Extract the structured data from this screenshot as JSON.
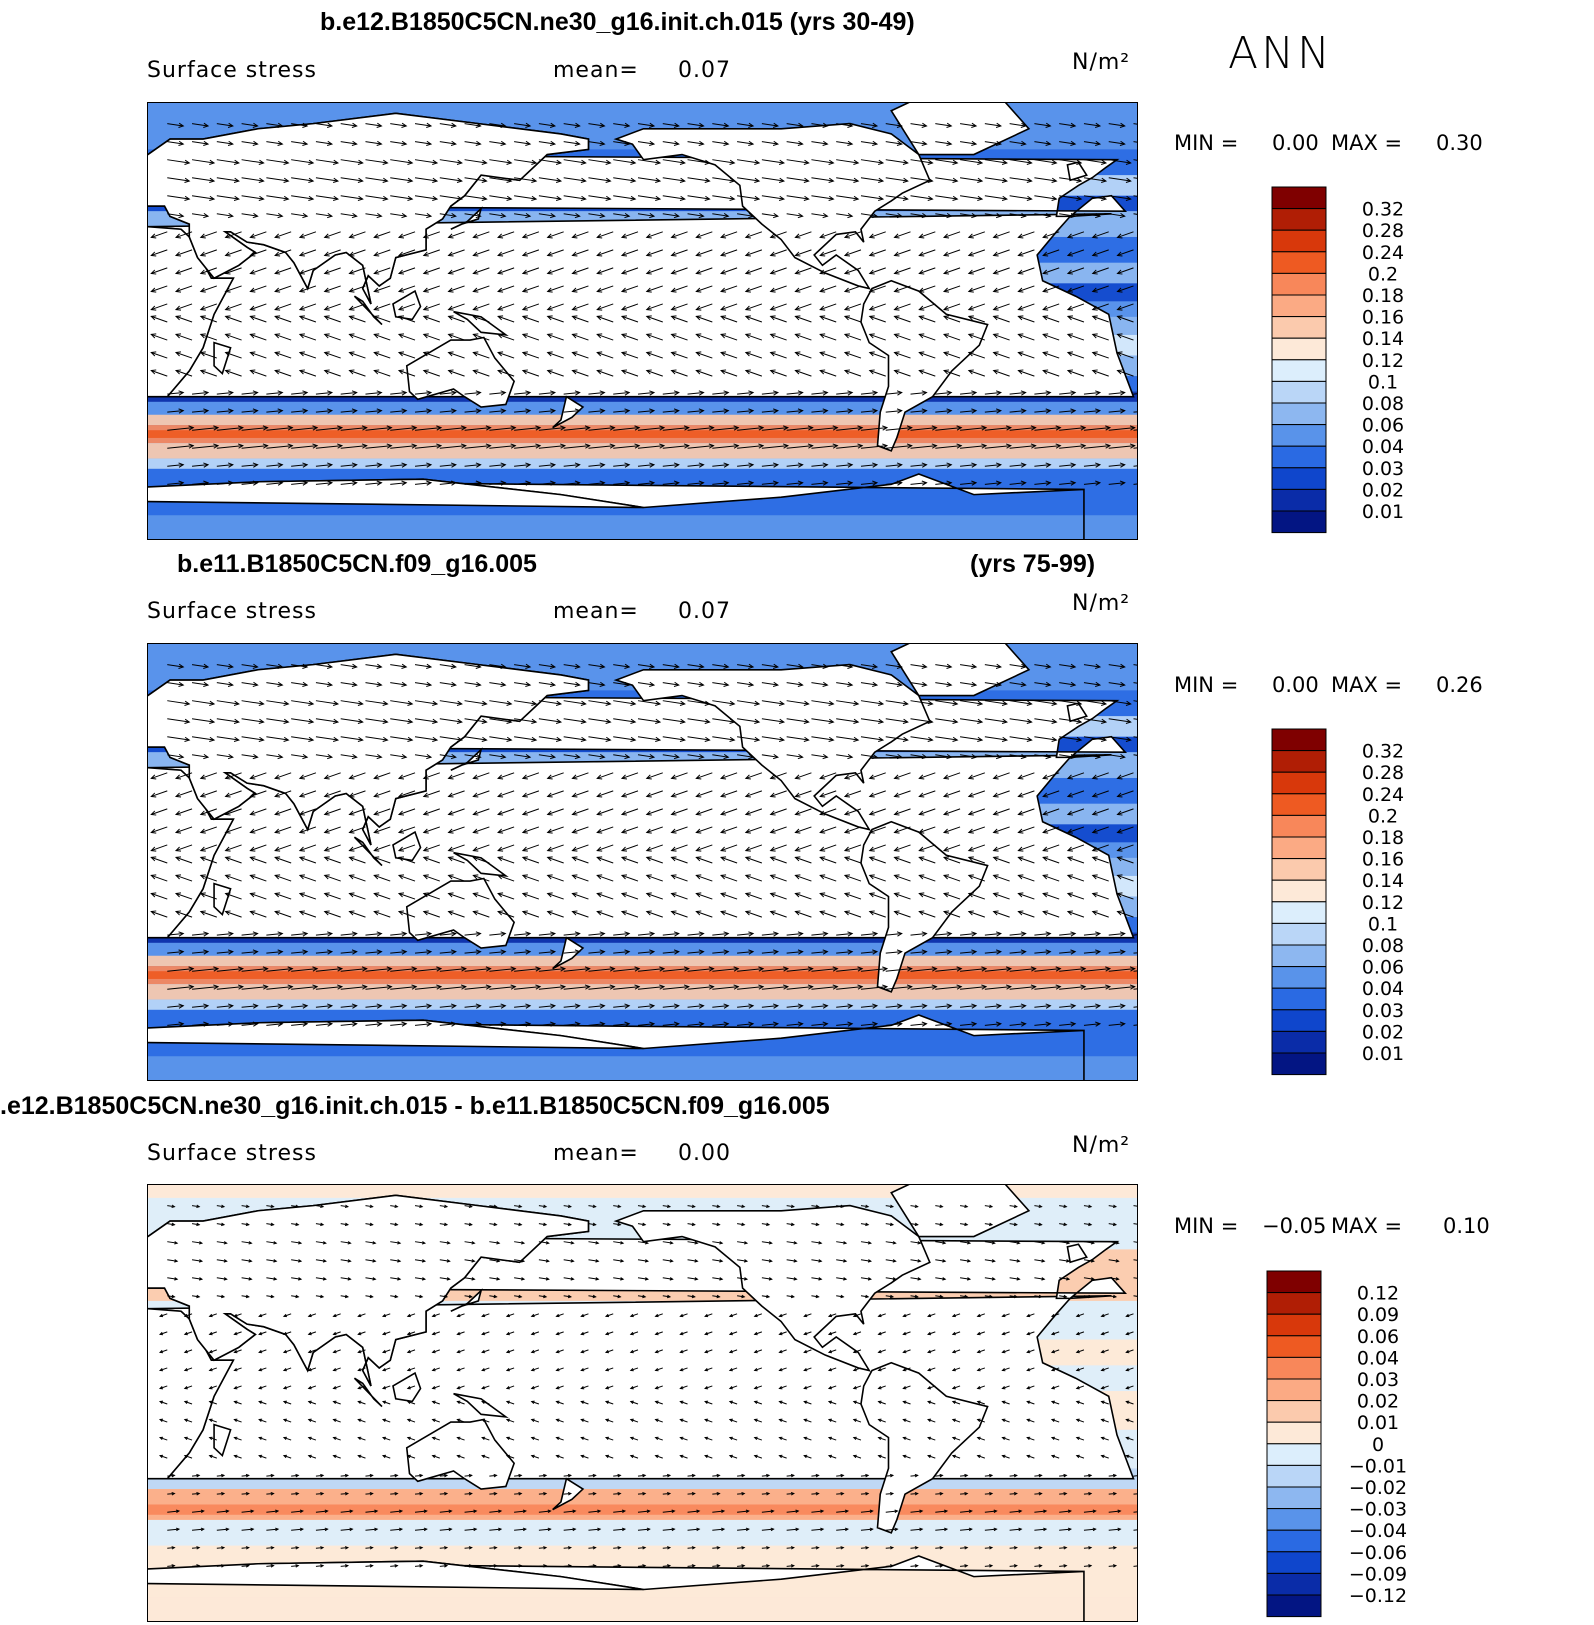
{
  "season_label": "ANN",
  "panels": [
    {
      "title_left": "b.e12.B1850C5CN.ne30_g16.init.ch.015 (yrs 30-49)",
      "title_right": "",
      "variable": "Surface stress",
      "mean_label": "mean=",
      "mean_value": "0.07",
      "units": "N/m²",
      "min_label": "MIN =",
      "min_value": "0.00",
      "max_label": "MAX =",
      "max_value": "0.30",
      "legend_ticks": [
        "0.32",
        "0.28",
        "0.24",
        "0.2",
        "0.18",
        "0.16",
        "0.14",
        "0.12",
        "0.1",
        "0.08",
        "0.06",
        "0.04",
        "0.03",
        "0.02",
        "0.01"
      ],
      "legend_colors": [
        "#7f0000",
        "#b01e05",
        "#d8380b",
        "#ee5a22",
        "#f8875a",
        "#fbaa84",
        "#fbcaad",
        "#fde9d8",
        "#dceefc",
        "#bad6f7",
        "#8db7f0",
        "#5993ea",
        "#2a6ae3",
        "#0f46cc",
        "#0a2ca8",
        "#031583"
      ]
    },
    {
      "title_left": "b.e11.B1850C5CN.f09_g16.005",
      "title_right": "(yrs 75-99)",
      "variable": "Surface stress",
      "mean_label": "mean=",
      "mean_value": "0.07",
      "units": "N/m²",
      "min_label": "MIN =",
      "min_value": "0.00",
      "max_label": "MAX =",
      "max_value": "0.26",
      "legend_ticks": [
        "0.32",
        "0.28",
        "0.24",
        "0.2",
        "0.18",
        "0.16",
        "0.14",
        "0.12",
        "0.1",
        "0.08",
        "0.06",
        "0.04",
        "0.03",
        "0.02",
        "0.01"
      ],
      "legend_colors": [
        "#7f0000",
        "#b01e05",
        "#d8380b",
        "#ee5a22",
        "#f8875a",
        "#fbaa84",
        "#fbcaad",
        "#fde9d8",
        "#dceefc",
        "#bad6f7",
        "#8db7f0",
        "#5993ea",
        "#2a6ae3",
        "#0f46cc",
        "#0a2ca8",
        "#031583"
      ]
    },
    {
      "title_left": ".e12.B1850C5CN.ne30_g16.init.ch.015 - b.e11.B1850C5CN.f09_g16.005",
      "title_right": "",
      "variable": "Surface stress",
      "mean_label": "mean=",
      "mean_value": "0.00",
      "units": "N/m²",
      "min_label": "MIN =",
      "min_value": "−0.05",
      "max_label": "MAX =",
      "max_value": "0.10",
      "legend_ticks": [
        "0.12",
        "0.09",
        "0.06",
        "0.04",
        "0.03",
        "0.02",
        "0.01",
        "0",
        "−0.01",
        "−0.02",
        "−0.03",
        "−0.04",
        "−0.06",
        "−0.09",
        "−0.12"
      ],
      "legend_colors": [
        "#7f0000",
        "#b01e05",
        "#d8380b",
        "#ee5a22",
        "#f8875a",
        "#fbaa84",
        "#fbcaad",
        "#fde9d8",
        "#dceefc",
        "#bad6f7",
        "#8db7f0",
        "#5993ea",
        "#2a6ae3",
        "#0f46cc",
        "#0a2ca8",
        "#031583"
      ]
    }
  ]
}
